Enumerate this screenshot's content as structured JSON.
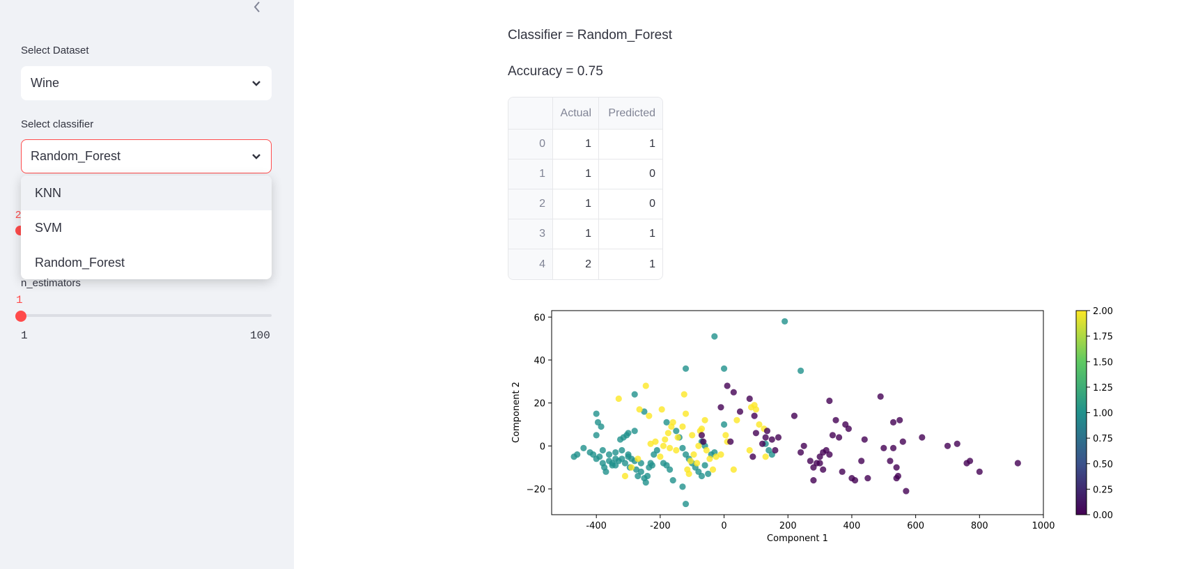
{
  "sidebar": {
    "dataset_label": "Select Dataset",
    "dataset_value": "Wine",
    "classifier_label": "Select classifier",
    "classifier_value": "Random_Forest",
    "classifier_options": [
      "KNN",
      "SVM",
      "Random_Forest"
    ],
    "hidden_slider_value": "2",
    "estimators_label": "n_estimators",
    "estimators_value": "1",
    "estimators_min": "1",
    "estimators_max": "100",
    "accent_color": "#ff4b4b",
    "collapse_icon": "chevron-left-icon"
  },
  "main": {
    "classifier_text": "Classifier = Random_Forest",
    "accuracy_text": "Accuracy = 0.75",
    "table": {
      "columns": [
        "",
        "Actual",
        "Predicted"
      ],
      "rows": [
        [
          "0",
          "1",
          "1"
        ],
        [
          "1",
          "1",
          "0"
        ],
        [
          "2",
          "1",
          "0"
        ],
        [
          "3",
          "1",
          "1"
        ],
        [
          "4",
          "2",
          "1"
        ]
      ]
    }
  },
  "chart_data": {
    "type": "scatter",
    "xlabel": "Component 1",
    "ylabel": "Component 2",
    "xlim": [
      -540,
      1000
    ],
    "ylim": [
      -32,
      63
    ],
    "xticks": [
      "-400",
      "-200",
      "0",
      "200",
      "400",
      "600",
      "800",
      "1000"
    ],
    "xtick_values": [
      -400,
      -200,
      0,
      200,
      400,
      600,
      800,
      1000
    ],
    "yticks": [
      "60",
      "40",
      "20",
      "0",
      "−20"
    ],
    "ytick_values": [
      60,
      40,
      20,
      0,
      -20
    ],
    "colorbar_ticks": [
      "2.00",
      "1.75",
      "1.50",
      "1.25",
      "1.00",
      "0.75",
      "0.50",
      "0.25",
      "0.00"
    ],
    "colorbar_values": [
      2.0,
      1.75,
      1.5,
      1.25,
      1.0,
      0.75,
      0.5,
      0.25,
      0.0
    ],
    "colormap": "viridis",
    "points": [
      [
        -470,
        -5,
        1
      ],
      [
        -460,
        -4,
        1
      ],
      [
        -440,
        -1,
        1
      ],
      [
        -420,
        -3,
        1
      ],
      [
        -410,
        -4,
        1
      ],
      [
        -400,
        -6,
        1
      ],
      [
        -390,
        -5,
        1
      ],
      [
        -400,
        15,
        1
      ],
      [
        -395,
        11,
        1
      ],
      [
        -385,
        9,
        1
      ],
      [
        -400,
        5,
        1
      ],
      [
        -380,
        -8,
        1
      ],
      [
        -375,
        -10,
        1
      ],
      [
        -370,
        -12,
        1
      ],
      [
        -360,
        -7,
        1
      ],
      [
        -350,
        -8,
        1
      ],
      [
        -340,
        -9,
        1
      ],
      [
        -330,
        -7,
        1
      ],
      [
        -320,
        -6,
        1
      ],
      [
        -310,
        -8,
        1
      ],
      [
        -300,
        -5,
        1
      ],
      [
        -295,
        -10,
        1
      ],
      [
        -340,
        -6,
        1
      ],
      [
        -350,
        -9,
        1
      ],
      [
        -325,
        3,
        1
      ],
      [
        -315,
        4,
        1
      ],
      [
        -305,
        5,
        1
      ],
      [
        -300,
        6,
        1
      ],
      [
        -280,
        7,
        1
      ],
      [
        -280,
        24,
        1
      ],
      [
        -250,
        16,
        1
      ],
      [
        -260,
        -12,
        1
      ],
      [
        -250,
        -15,
        1
      ],
      [
        -245,
        -17,
        1
      ],
      [
        -240,
        -14,
        1
      ],
      [
        -235,
        -10,
        1
      ],
      [
        -225,
        -9,
        1
      ],
      [
        -230,
        -8,
        1
      ],
      [
        -270,
        -14,
        1
      ],
      [
        -275,
        -11,
        1
      ],
      [
        -260,
        -8,
        1
      ],
      [
        -280,
        -7,
        1
      ],
      [
        -290,
        -6,
        1
      ],
      [
        -300,
        -4,
        1
      ],
      [
        -320,
        -2,
        1
      ],
      [
        -340,
        -3,
        1
      ],
      [
        -360,
        -4,
        1
      ],
      [
        -380,
        -2,
        1
      ],
      [
        -220,
        -4,
        1
      ],
      [
        -210,
        -2,
        1
      ],
      [
        -190,
        -8,
        1
      ],
      [
        -180,
        -9,
        1
      ],
      [
        -170,
        -11,
        1
      ],
      [
        -160,
        -16,
        1
      ],
      [
        -130,
        -19,
        1
      ],
      [
        -120,
        -27,
        1
      ],
      [
        -180,
        11,
        1
      ],
      [
        -120,
        36,
        1
      ],
      [
        -100,
        -8,
        1
      ],
      [
        -90,
        -10,
        1
      ],
      [
        -80,
        -12,
        1
      ],
      [
        -70,
        -14,
        1
      ],
      [
        -60,
        -9,
        1
      ],
      [
        -50,
        -13,
        1
      ],
      [
        -40,
        -4,
        1
      ],
      [
        -30,
        -3,
        1
      ],
      [
        -70,
        2,
        1
      ],
      [
        -60,
        0,
        1
      ],
      [
        -120,
        -4,
        1
      ],
      [
        -110,
        -6,
        1
      ],
      [
        -130,
        -1,
        1
      ],
      [
        -150,
        7,
        1
      ],
      [
        -140,
        4,
        1
      ],
      [
        -30,
        51,
        1
      ],
      [
        0,
        36,
        1
      ],
      [
        190,
        58,
        1
      ],
      [
        240,
        35,
        1
      ],
      [
        0,
        10,
        1
      ],
      [
        130,
        1,
        1
      ],
      [
        140,
        -2,
        1
      ],
      [
        150,
        -4,
        1
      ],
      [
        -330,
        22,
        2
      ],
      [
        -310,
        -14,
        2
      ],
      [
        -290,
        -10,
        2
      ],
      [
        -270,
        -6,
        2
      ],
      [
        -265,
        17,
        2
      ],
      [
        -245,
        28,
        2
      ],
      [
        -235,
        14,
        2
      ],
      [
        -230,
        1,
        2
      ],
      [
        -215,
        2,
        2
      ],
      [
        -200,
        -5,
        2
      ],
      [
        -195,
        17,
        2
      ],
      [
        -190,
        0,
        2
      ],
      [
        -185,
        3,
        2
      ],
      [
        -175,
        6,
        2
      ],
      [
        -170,
        -1,
        2
      ],
      [
        -165,
        9,
        2
      ],
      [
        -160,
        11,
        2
      ],
      [
        -150,
        -2,
        2
      ],
      [
        -145,
        4,
        2
      ],
      [
        -130,
        9,
        2
      ],
      [
        -125,
        24,
        2
      ],
      [
        -120,
        15,
        2
      ],
      [
        -115,
        -11,
        2
      ],
      [
        -110,
        -13,
        2
      ],
      [
        -105,
        -7,
        2
      ],
      [
        -100,
        5,
        2
      ],
      [
        -95,
        -4,
        2
      ],
      [
        -85,
        -8,
        2
      ],
      [
        -80,
        0,
        2
      ],
      [
        -75,
        7,
        2
      ],
      [
        -70,
        8,
        2
      ],
      [
        -60,
        12,
        2
      ],
      [
        -55,
        -2,
        2
      ],
      [
        -45,
        -6,
        2
      ],
      [
        -35,
        -11,
        2
      ],
      [
        -25,
        -5,
        2
      ],
      [
        -10,
        -4,
        2
      ],
      [
        5,
        5,
        2
      ],
      [
        10,
        2,
        2
      ],
      [
        30,
        -11,
        2
      ],
      [
        40,
        12,
        2
      ],
      [
        80,
        -2,
        2
      ],
      [
        85,
        18,
        2
      ],
      [
        95,
        19,
        2
      ],
      [
        100,
        17,
        2
      ],
      [
        110,
        10,
        2
      ],
      [
        130,
        -5,
        2
      ],
      [
        125,
        8,
        2
      ],
      [
        -10,
        18,
        0
      ],
      [
        10,
        28,
        0
      ],
      [
        30,
        25,
        0
      ],
      [
        20,
        2,
        0
      ],
      [
        50,
        16,
        0
      ],
      [
        80,
        22,
        0
      ],
      [
        95,
        14,
        0
      ],
      [
        100,
        6,
        0
      ],
      [
        120,
        1,
        0
      ],
      [
        130,
        4,
        0
      ],
      [
        135,
        7,
        0
      ],
      [
        150,
        3,
        0
      ],
      [
        160,
        -2,
        0
      ],
      [
        170,
        4,
        0
      ],
      [
        90,
        -5,
        0
      ],
      [
        220,
        14,
        0
      ],
      [
        240,
        -3,
        0
      ],
      [
        250,
        0,
        0
      ],
      [
        270,
        -7,
        0
      ],
      [
        280,
        -10,
        0
      ],
      [
        290,
        -8,
        0
      ],
      [
        300,
        -5,
        0
      ],
      [
        310,
        -3,
        0
      ],
      [
        320,
        -2,
        0
      ],
      [
        330,
        21,
        0
      ],
      [
        340,
        5,
        0
      ],
      [
        350,
        12,
        0
      ],
      [
        360,
        4,
        0
      ],
      [
        370,
        -12,
        0
      ],
      [
        380,
        10,
        0
      ],
      [
        390,
        8,
        0
      ],
      [
        400,
        -15,
        0
      ],
      [
        410,
        -16,
        0
      ],
      [
        430,
        -7,
        0
      ],
      [
        440,
        3,
        0
      ],
      [
        450,
        -15,
        0
      ],
      [
        490,
        23,
        0
      ],
      [
        500,
        -1,
        0
      ],
      [
        520,
        -7,
        0
      ],
      [
        530,
        11,
        0
      ],
      [
        540,
        -10,
        0
      ],
      [
        545,
        -14,
        0
      ],
      [
        550,
        12,
        0
      ],
      [
        560,
        2,
        0
      ],
      [
        570,
        -21,
        0
      ],
      [
        620,
        4,
        0
      ],
      [
        700,
        0,
        0
      ],
      [
        730,
        1,
        0
      ],
      [
        760,
        -8,
        0
      ],
      [
        770,
        -7,
        0
      ],
      [
        800,
        -12,
        0
      ],
      [
        920,
        -8,
        0
      ],
      [
        300,
        -8,
        0
      ],
      [
        310,
        -11,
        0
      ],
      [
        540,
        -15,
        0
      ],
      [
        330,
        -4,
        0
      ],
      [
        280,
        -16,
        0
      ],
      [
        530,
        -1,
        0
      ],
      [
        -70,
        5,
        0
      ],
      [
        -65,
        2,
        0
      ]
    ]
  }
}
